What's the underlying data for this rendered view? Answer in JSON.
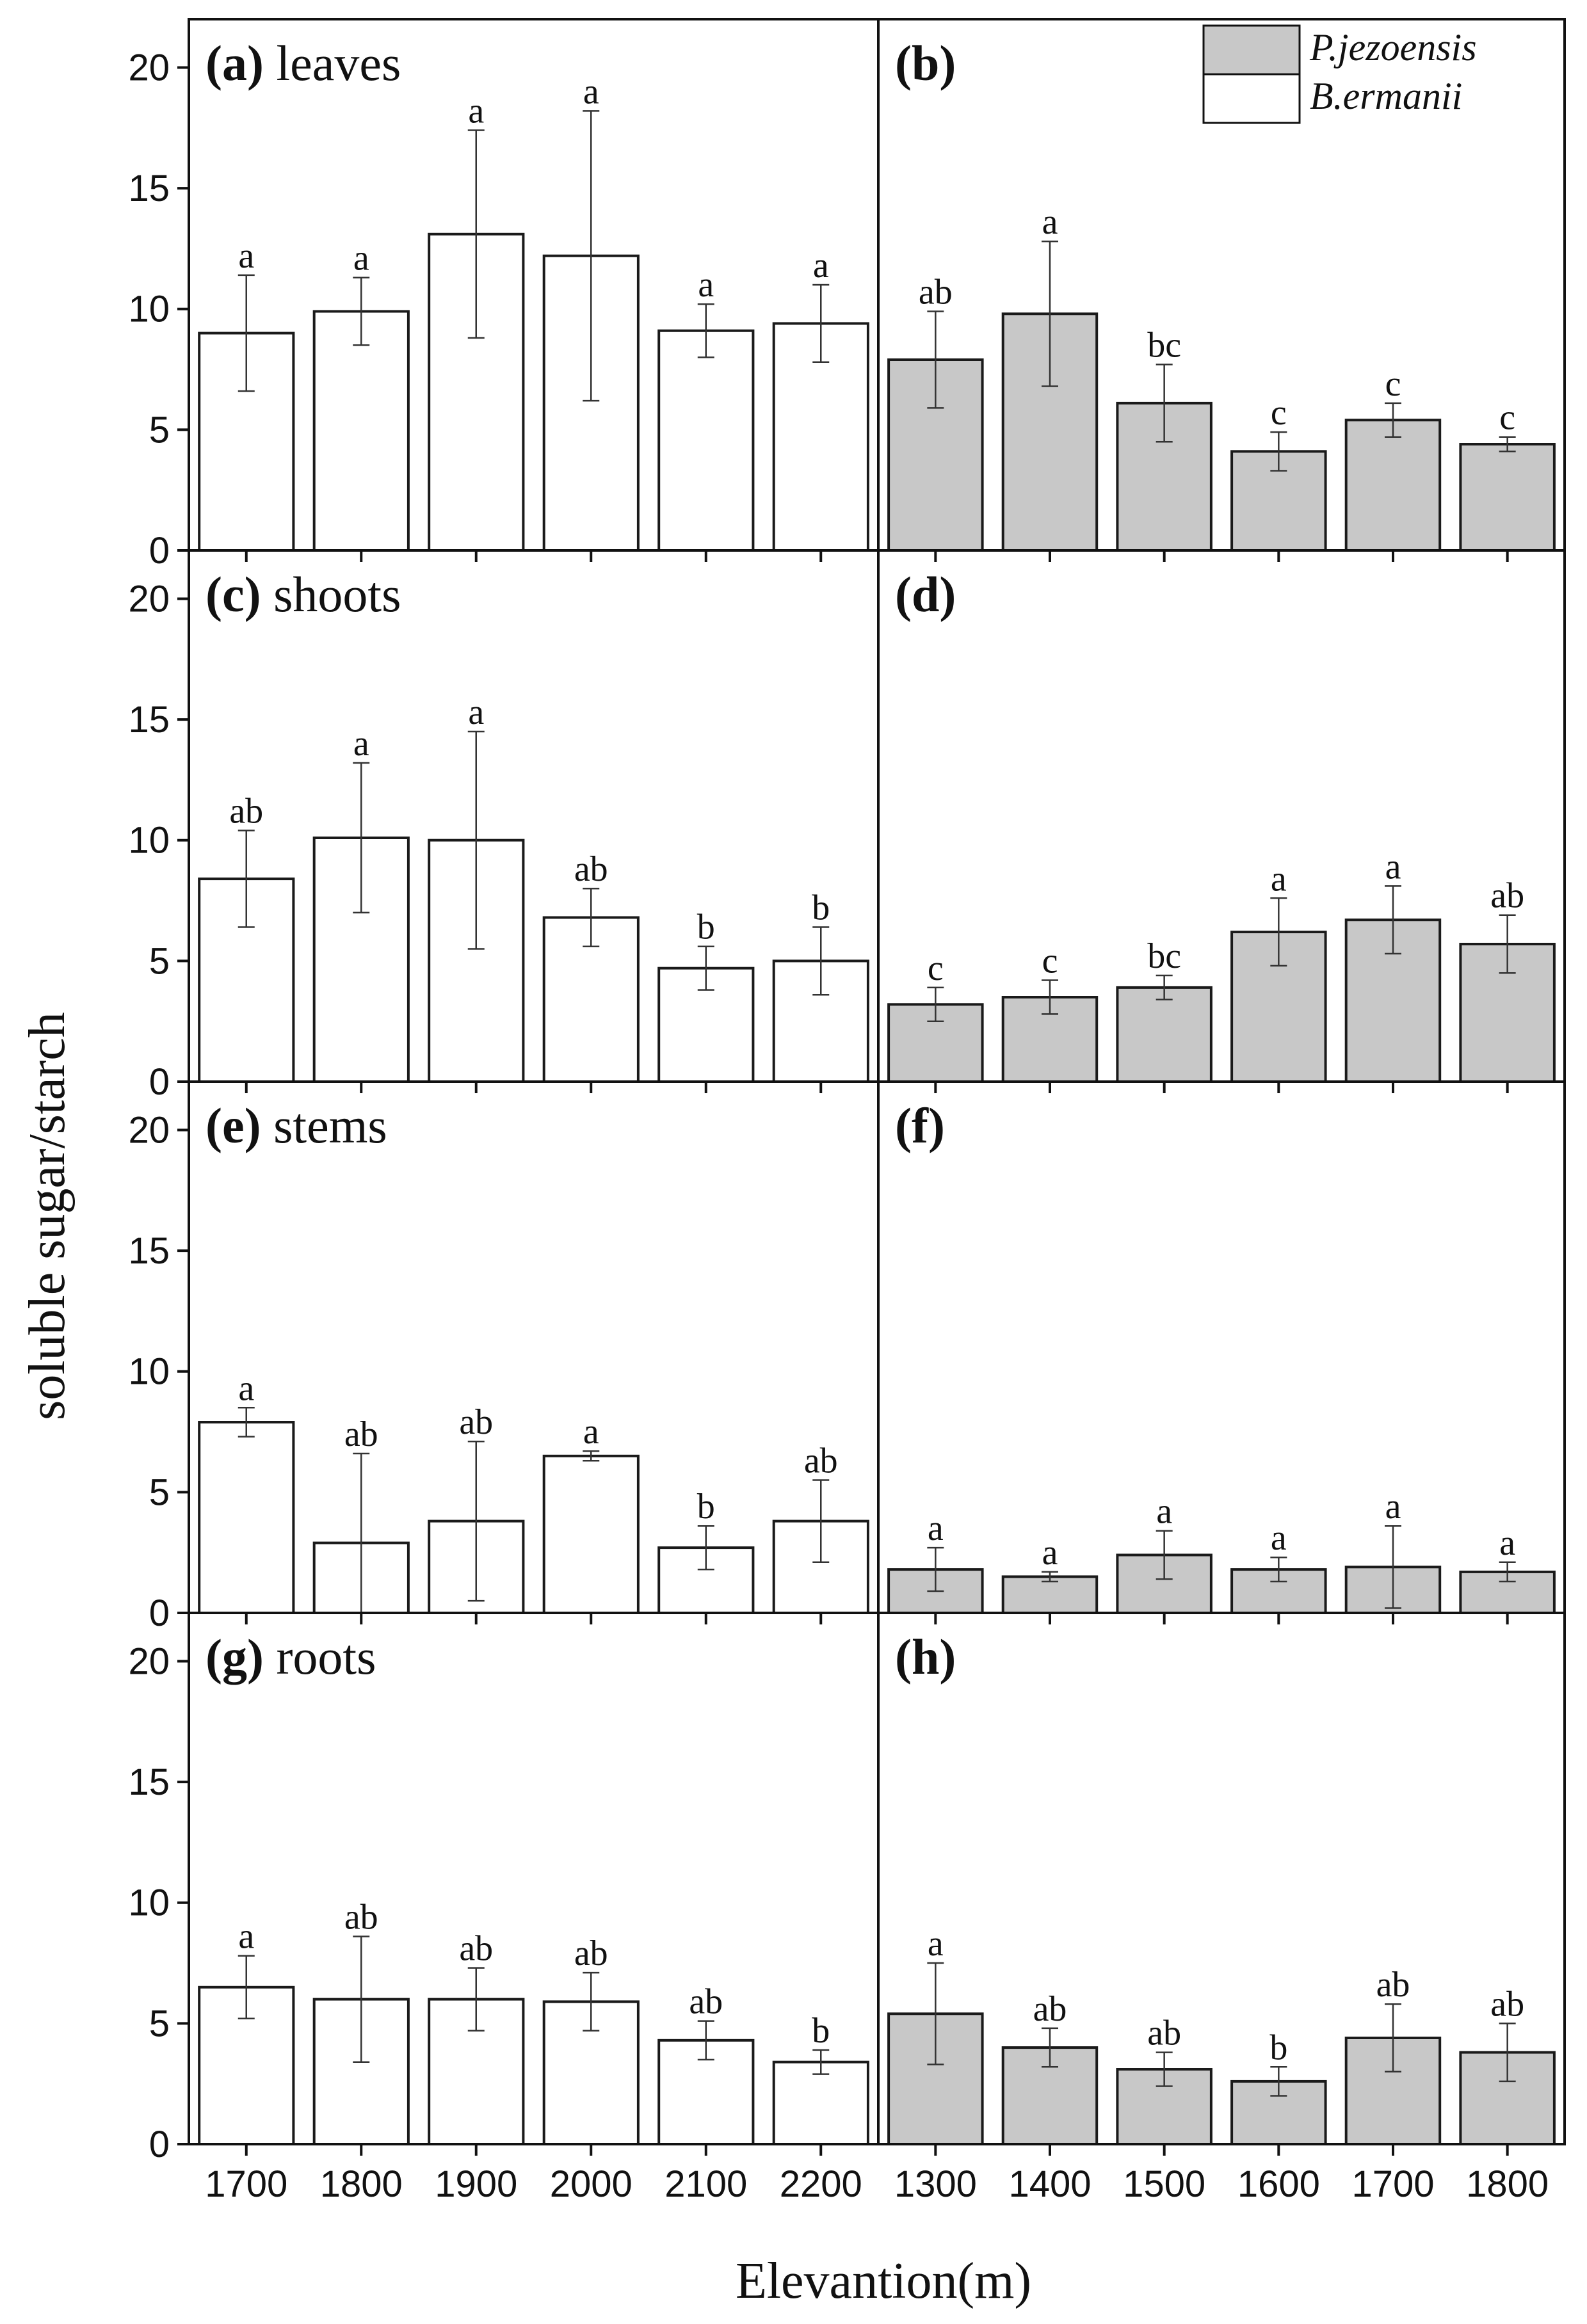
{
  "chart_data": {
    "type": "bar",
    "title": "",
    "xlabel": "Elevantion(m)",
    "ylabel": "soluble sugar/starch",
    "ylim": [
      0,
      22
    ],
    "yticks": [
      0,
      5,
      10,
      15,
      20
    ],
    "legend": {
      "placement": "top-right",
      "entries": [
        {
          "name": "P.jezoensis",
          "color": "#c8c8c8"
        },
        {
          "name": "B.ermanii",
          "color": "#ffffff"
        }
      ]
    },
    "columns": [
      {
        "species": "B.ermanii",
        "categories": [
          "1700",
          "1800",
          "1900",
          "2000",
          "2100",
          "2200"
        ],
        "fill": "#ffffff"
      },
      {
        "species": "P.jezoensis",
        "categories": [
          "1300",
          "1400",
          "1500",
          "1600",
          "1700",
          "1800"
        ],
        "fill": "#c8c8c8"
      }
    ],
    "panels": [
      {
        "letter": "(a)",
        "tissue": "leaves",
        "row": 0,
        "col": 0,
        "values": [
          9.0,
          9.9,
          13.1,
          12.2,
          9.1,
          9.4
        ],
        "errors": [
          2.4,
          1.4,
          4.3,
          6.0,
          1.1,
          1.6
        ],
        "sig": [
          "a",
          "a",
          "a",
          "a",
          "a",
          "a"
        ]
      },
      {
        "letter": "(b)",
        "tissue": "",
        "row": 0,
        "col": 1,
        "values": [
          7.9,
          9.8,
          6.1,
          4.1,
          5.4,
          4.4
        ],
        "errors": [
          2.0,
          3.0,
          1.6,
          0.8,
          0.7,
          0.3
        ],
        "sig": [
          "ab",
          "a",
          "bc",
          "c",
          "c",
          "c"
        ]
      },
      {
        "letter": "(c)",
        "tissue": "shoots",
        "row": 1,
        "col": 0,
        "values": [
          8.4,
          10.1,
          10.0,
          6.8,
          4.7,
          5.0
        ],
        "errors": [
          2.0,
          3.1,
          4.5,
          1.2,
          0.9,
          1.4
        ],
        "sig": [
          "ab",
          "a",
          "a",
          "ab",
          "b",
          "b"
        ]
      },
      {
        "letter": "(d)",
        "tissue": "",
        "row": 1,
        "col": 1,
        "values": [
          3.2,
          3.5,
          3.9,
          6.2,
          6.7,
          5.7
        ],
        "errors": [
          0.7,
          0.7,
          0.5,
          1.4,
          1.4,
          1.2
        ],
        "sig": [
          "c",
          "c",
          "bc",
          "a",
          "a",
          "ab"
        ]
      },
      {
        "letter": "(e)",
        "tissue": "stems",
        "row": 2,
        "col": 0,
        "values": [
          7.9,
          2.9,
          3.8,
          6.5,
          2.7,
          3.8
        ],
        "errors": [
          0.6,
          3.7,
          3.3,
          0.2,
          0.9,
          1.7
        ],
        "sig": [
          "a",
          "ab",
          "ab",
          "a",
          "b",
          "ab"
        ]
      },
      {
        "letter": "(f)",
        "tissue": "",
        "row": 2,
        "col": 1,
        "values": [
          1.8,
          1.5,
          2.4,
          1.8,
          1.9,
          1.7
        ],
        "errors": [
          0.9,
          0.2,
          1.0,
          0.5,
          1.7,
          0.4
        ],
        "sig": [
          "a",
          "a",
          "a",
          "a",
          "a",
          "a"
        ]
      },
      {
        "letter": "(g)",
        "tissue": "roots",
        "row": 3,
        "col": 0,
        "values": [
          6.5,
          6.0,
          6.0,
          5.9,
          4.3,
          3.4
        ],
        "errors": [
          1.3,
          2.6,
          1.3,
          1.2,
          0.8,
          0.5
        ],
        "sig": [
          "a",
          "ab",
          "ab",
          "ab",
          "ab",
          "b"
        ]
      },
      {
        "letter": "(h)",
        "tissue": "",
        "row": 3,
        "col": 1,
        "values": [
          5.4,
          4.0,
          3.1,
          2.6,
          4.4,
          3.8
        ],
        "errors": [
          2.1,
          0.8,
          0.7,
          0.6,
          1.4,
          1.2
        ],
        "sig": [
          "a",
          "ab",
          "ab",
          "b",
          "ab",
          "ab"
        ]
      }
    ]
  }
}
